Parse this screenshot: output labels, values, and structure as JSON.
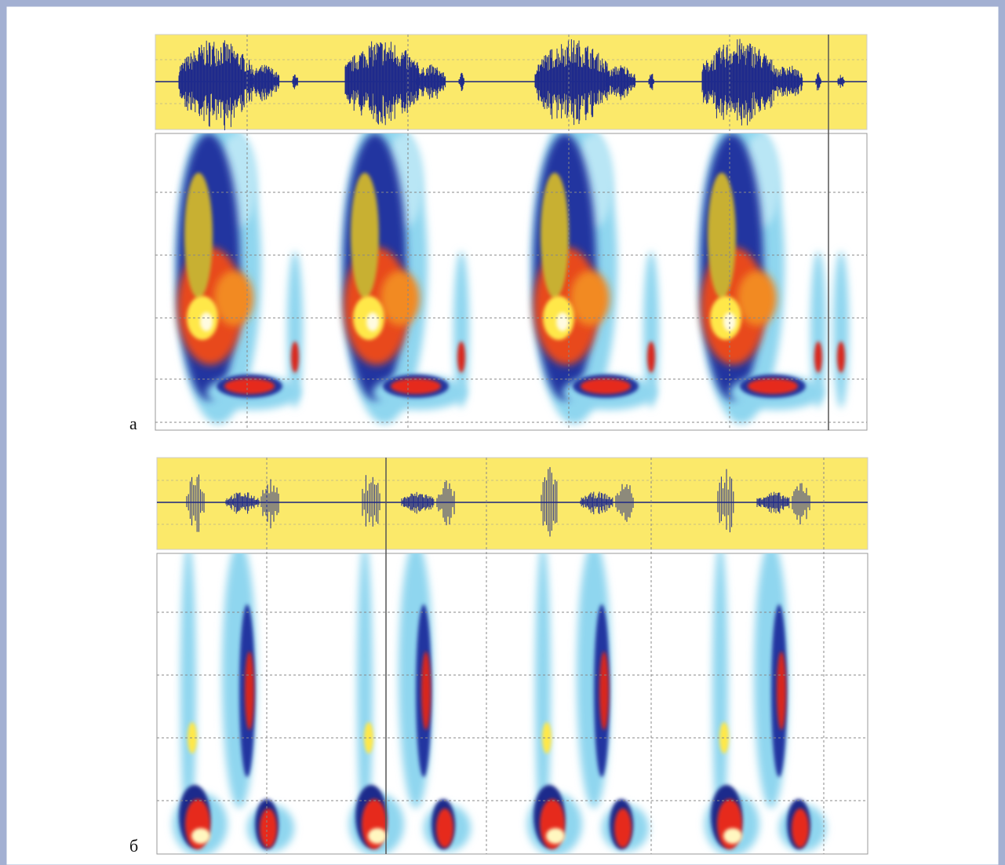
{
  "panels": [
    {
      "label": "а"
    },
    {
      "label": "б"
    }
  ]
}
